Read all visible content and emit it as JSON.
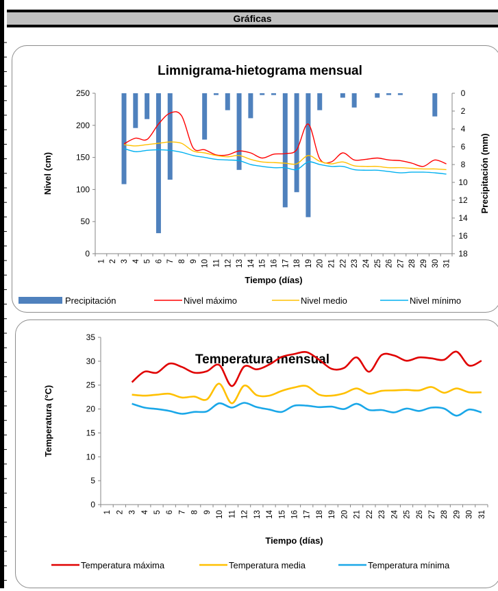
{
  "header": {
    "title": "Gráficas"
  },
  "colors": {
    "precipitation": "#4f81bd",
    "max": "#ff0000",
    "mean": "#ffc000",
    "min": "#00b0f0",
    "temp_max": "#e00000",
    "temp_mean": "#ffc000",
    "temp_min": "#1aa7e8"
  },
  "chart_data": [
    {
      "type": "bar+line",
      "title": "Limnigrama-hietograma mensual",
      "xlabel": "Tiempo (días)",
      "ylabel": "Nivel (cm)",
      "y2label": "Precipitación (mm)",
      "categories": [
        "1",
        "2",
        "3",
        "4",
        "5",
        "6",
        "7",
        "8",
        "9",
        "10",
        "11",
        "12",
        "13",
        "14",
        "15",
        "16",
        "17",
        "18",
        "19",
        "20",
        "21",
        "22",
        "23",
        "24",
        "25",
        "26",
        "27",
        "28",
        "29",
        "30",
        "31"
      ],
      "ylim": [
        0,
        250
      ],
      "yticks": [
        "0",
        "50",
        "100",
        "150",
        "200",
        "250"
      ],
      "y2lim": [
        0,
        18
      ],
      "y2_inverted": true,
      "y2ticks": [
        "0",
        "2",
        "4",
        "6",
        "8",
        "10",
        "12",
        "14",
        "16",
        "18"
      ],
      "legend": [
        "Precipitación",
        "Nivel máximo",
        "Nivel medio",
        "Nivel mínimo"
      ],
      "legend_position": "bottom",
      "precipitation": [
        null,
        null,
        10.2,
        3.9,
        2.9,
        15.7,
        9.7,
        null,
        null,
        5.2,
        0.2,
        1.9,
        8.6,
        2.8,
        0.2,
        0.2,
        12.8,
        11.1,
        13.9,
        1.9,
        null,
        0.5,
        1.6,
        null,
        0.5,
        0.2,
        0.2,
        null,
        null,
        2.6,
        null
      ],
      "series": [
        {
          "name": "Nivel máximo",
          "values": [
            null,
            null,
            171,
            180,
            178,
            202,
            219,
            215,
            165,
            162,
            154,
            154,
            160,
            157,
            149,
            155,
            156,
            162,
            202,
            148,
            143,
            157,
            146,
            147,
            149,
            146,
            145,
            141,
            136,
            146,
            140
          ]
        },
        {
          "name": "Nivel medio",
          "values": [
            null,
            null,
            170,
            168,
            170,
            172,
            174,
            172,
            160,
            157,
            153,
            151,
            153,
            147,
            143,
            142,
            141,
            140,
            153,
            144,
            140,
            143,
            137,
            136,
            136,
            134,
            134,
            133,
            132,
            132,
            131
          ]
        },
        {
          "name": "Nivel mínimo",
          "values": [
            null,
            null,
            164,
            159,
            161,
            162,
            161,
            158,
            153,
            150,
            147,
            146,
            145,
            139,
            136,
            134,
            134,
            131,
            143,
            139,
            136,
            136,
            131,
            130,
            130,
            128,
            126,
            127,
            127,
            126,
            124
          ]
        }
      ]
    },
    {
      "type": "line",
      "title": "Temperatura mensual",
      "xlabel": "Tiempo (días)",
      "ylabel": "Temperatura (°C)",
      "categories": [
        "1",
        "2",
        "3",
        "4",
        "5",
        "6",
        "7",
        "8",
        "9",
        "10",
        "11",
        "12",
        "13",
        "14",
        "15",
        "16",
        "17",
        "18",
        "19",
        "20",
        "21",
        "22",
        "23",
        "24",
        "25",
        "26",
        "27",
        "28",
        "29",
        "30",
        "31"
      ],
      "ylim": [
        0,
        35
      ],
      "yticks": [
        "0",
        "5",
        "10",
        "15",
        "20",
        "25",
        "30",
        "35"
      ],
      "legend": [
        "Temperatura máxima",
        "Temperatura media",
        "Temperatura mínima"
      ],
      "legend_position": "bottom",
      "series": [
        {
          "name": "Temperatura máxima",
          "values": [
            null,
            null,
            25.6,
            27.8,
            27.6,
            29.5,
            28.8,
            27.6,
            27.9,
            29.2,
            24.8,
            28.9,
            28.3,
            29.3,
            30.9,
            31.5,
            31.9,
            30.3,
            28.4,
            28.6,
            30.8,
            27.8,
            31.3,
            31.2,
            30.1,
            30.8,
            30.6,
            30.3,
            32.0,
            29.1,
            30.1
          ]
        },
        {
          "name": "Temperatura media",
          "values": [
            null,
            null,
            23.0,
            22.8,
            23.0,
            23.2,
            22.4,
            22.6,
            22.0,
            25.3,
            21.2,
            24.9,
            22.9,
            22.8,
            23.8,
            24.5,
            24.8,
            23.0,
            22.8,
            23.3,
            24.3,
            23.2,
            23.8,
            23.9,
            24.0,
            23.9,
            24.6,
            23.4,
            24.3,
            23.5,
            23.5
          ]
        },
        {
          "name": "Temperatura mínima",
          "values": [
            null,
            null,
            21.1,
            20.3,
            20.0,
            19.6,
            19.0,
            19.4,
            19.5,
            21.2,
            20.3,
            21.3,
            20.4,
            19.9,
            19.4,
            20.7,
            20.7,
            20.4,
            20.5,
            20.0,
            21.1,
            19.8,
            19.8,
            19.3,
            20.1,
            19.6,
            20.3,
            20.1,
            18.6,
            19.9,
            19.3
          ]
        }
      ]
    }
  ]
}
